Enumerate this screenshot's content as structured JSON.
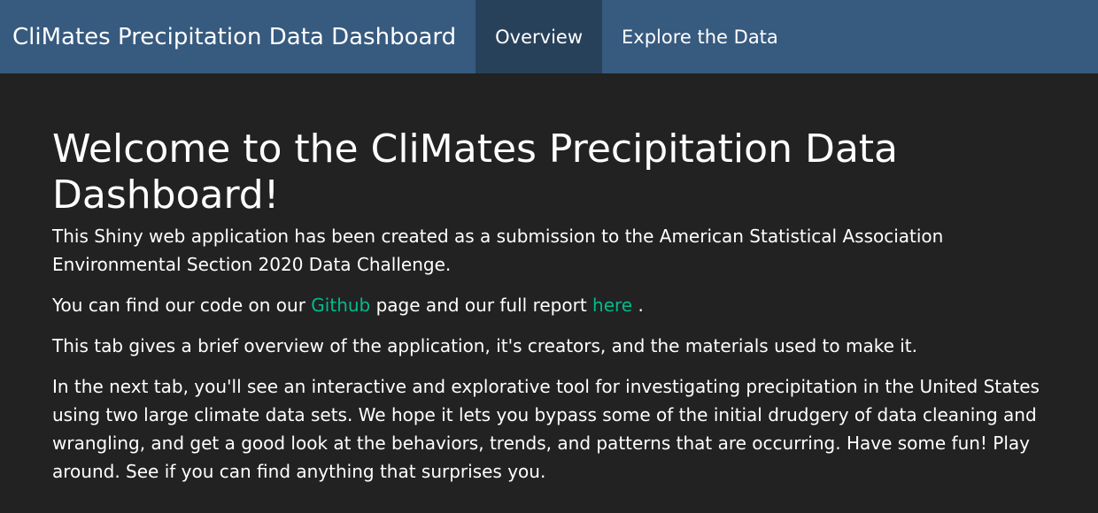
{
  "navbar": {
    "brand": "CliMates Precipitation Data Dashboard",
    "tabs": [
      {
        "label": "Overview",
        "active": true
      },
      {
        "label": "Explore the Data",
        "active": false
      }
    ]
  },
  "main": {
    "heading": "Welcome to the CliMates Precipitation Data Dashboard!",
    "para1": "This Shiny web application has been created as a submission to the American Statistical Association Environmental Section 2020 Data Challenge.",
    "para2": {
      "before": "You can find our code on our ",
      "github_link": "Github",
      "middle": " page and our full report ",
      "report_link": "here",
      "after": " ."
    },
    "para3": "This tab gives a brief overview of the application, it's creators, and the materials used to make it.",
    "para4": "In the next tab, you'll see an interactive and explorative tool for investigating precipitation in the United States using two large climate data sets. We hope it lets you bypass some of the initial drudgery of data cleaning and wrangling, and get a good look at the behaviors, trends, and patterns that are occurring. Have some fun! Play around. See if you can find anything that surprises you."
  },
  "colors": {
    "navbar": "#375a7f",
    "active_tab": "#28415b",
    "background": "#222222",
    "link": "#00bc8c"
  }
}
